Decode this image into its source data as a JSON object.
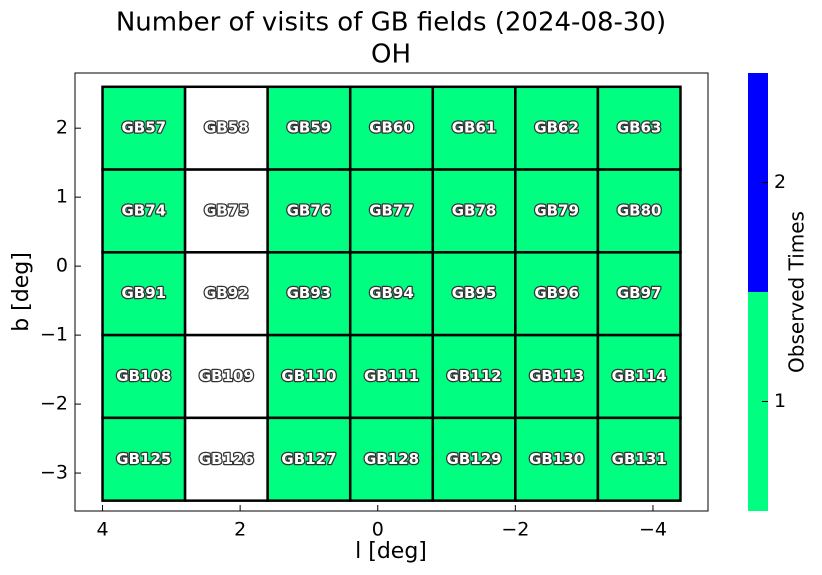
{
  "chart_data": {
    "type": "heatmap",
    "title": "Number of visits of GB fields (2024-08-30)",
    "subtitle": "OH",
    "xlabel": "l [deg]",
    "ylabel": "b [deg]",
    "x": [
      3.4,
      2.2,
      1.0,
      -0.2,
      -1.4,
      -2.6,
      -3.8
    ],
    "y": [
      2.0,
      0.8,
      -0.4,
      -1.6,
      -2.8
    ],
    "labels": [
      [
        "GB57",
        "GB58",
        "GB59",
        "GB60",
        "GB61",
        "GB62",
        "GB63"
      ],
      [
        "GB74",
        "GB75",
        "GB76",
        "GB77",
        "GB78",
        "GB79",
        "GB80"
      ],
      [
        "GB91",
        "GB92",
        "GB93",
        "GB94",
        "GB95",
        "GB96",
        "GB97"
      ],
      [
        "GB108",
        "GB109",
        "GB110",
        "GB111",
        "GB112",
        "GB113",
        "GB114"
      ],
      [
        "GB125",
        "GB126",
        "GB127",
        "GB128",
        "GB129",
        "GB130",
        "GB131"
      ]
    ],
    "values": [
      [
        1,
        null,
        1,
        1,
        1,
        1,
        1
      ],
      [
        1,
        null,
        1,
        1,
        1,
        1,
        1
      ],
      [
        1,
        null,
        1,
        1,
        1,
        1,
        1
      ],
      [
        1,
        null,
        1,
        1,
        1,
        1,
        1
      ],
      [
        1,
        null,
        1,
        1,
        1,
        1,
        1
      ]
    ],
    "xlim": [
      4.4,
      -4.8
    ],
    "ylim": [
      -3.55,
      2.8
    ],
    "xticks": [
      4,
      2,
      0,
      {
        "value": -2,
        "label": "−2"
      },
      {
        "value": -4,
        "label": "−4"
      }
    ],
    "yticks": [
      {
        "value": -3,
        "label": "−3"
      },
      {
        "value": -2,
        "label": "−2"
      },
      {
        "value": -1,
        "label": "−1"
      },
      0,
      1,
      2
    ],
    "colorbar": {
      "label": "Observed Times",
      "lim": [
        0.5,
        2.5
      ],
      "ticks": [
        1,
        2
      ],
      "colors": [
        "#00ff80",
        "#0000ff"
      ]
    }
  }
}
